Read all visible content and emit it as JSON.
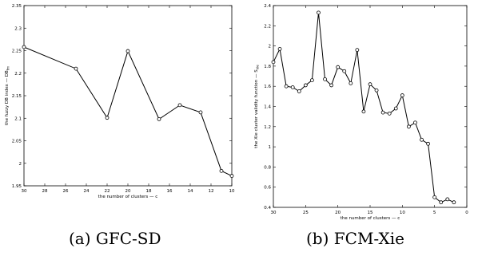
{
  "captions": {
    "a": "(a) GFC-SD",
    "b": "(b) FCM-Xie"
  },
  "chart_data": [
    {
      "type": "line",
      "xlabel": "the number of clusters — c",
      "ylabel": "the fuzzy DB index — DB_fm",
      "xlim": [
        30,
        10
      ],
      "ylim": [
        1.95,
        2.35
      ],
      "x_reversed": true,
      "x_ticks": [
        30,
        28,
        26,
        24,
        22,
        20,
        18,
        16,
        14,
        12,
        10
      ],
      "y_ticks": [
        1.95,
        2,
        2.05,
        2.1,
        2.15,
        2.2,
        2.25,
        2.3,
        2.35
      ],
      "y_tick_labels": [
        "1.95",
        "2",
        "2.05",
        "2.1",
        "2.15",
        "2.2",
        "2.25",
        "2.3",
        "2.35"
      ],
      "marker": "circle",
      "grid": false,
      "x": [
        30,
        25,
        22,
        20,
        17,
        15,
        13,
        11,
        10
      ],
      "y": [
        2.258,
        2.21,
        2.101,
        2.249,
        2.098,
        2.129,
        2.113,
        1.983,
        1.972
      ]
    },
    {
      "type": "line",
      "xlabel": "the number of clusters — c",
      "ylabel": "the Xie cluster validity function — S_xie",
      "xlim": [
        30,
        0
      ],
      "ylim": [
        0.4,
        2.4
      ],
      "x_reversed": true,
      "x_ticks": [
        30,
        25,
        20,
        15,
        10,
        5,
        0
      ],
      "y_ticks": [
        0.4,
        0.6,
        0.8,
        1,
        1.2,
        1.4,
        1.6,
        1.8,
        2,
        2.2,
        2.4
      ],
      "y_tick_labels": [
        "0.4",
        "0.6",
        "0.8",
        "1",
        "1.2",
        "1.4",
        "1.6",
        "1.8",
        "2",
        "2.2",
        "2.4"
      ],
      "marker": "circle",
      "grid": false,
      "x": [
        30,
        29,
        28,
        27,
        26,
        25,
        24,
        23,
        22,
        21,
        20,
        19,
        18,
        17,
        16,
        15,
        14,
        13,
        12,
        11,
        10,
        9,
        8,
        7,
        6,
        5,
        4,
        3,
        2
      ],
      "y": [
        1.84,
        1.97,
        1.6,
        1.59,
        1.55,
        1.61,
        1.66,
        2.33,
        1.67,
        1.61,
        1.79,
        1.75,
        1.63,
        1.96,
        1.35,
        1.62,
        1.56,
        1.34,
        1.33,
        1.38,
        1.51,
        1.2,
        1.24,
        1.07,
        1.03,
        0.5,
        0.45,
        0.48,
        0.45
      ]
    }
  ]
}
